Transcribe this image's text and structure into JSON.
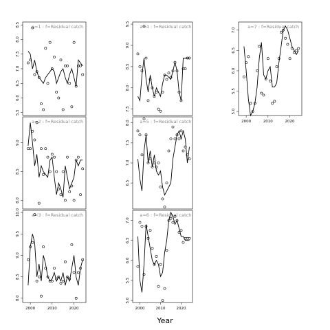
{
  "figure": {
    "xlabel": "Year"
  },
  "chart_data": [
    {
      "type": "line",
      "title": "a=1 : f=Residual catch",
      "ylim": [
        5.4,
        8.6
      ],
      "yticks": [
        5.5,
        6.0,
        6.5,
        7.0,
        7.5,
        8.0,
        8.5
      ],
      "xticks": [],
      "series": [
        {
          "style": "line",
          "x": [
            1999,
            2000,
            2001,
            2002,
            2003,
            2004,
            2005,
            2006,
            2007,
            2008,
            2009,
            2010,
            2011,
            2012,
            2013,
            2014,
            2015,
            2016,
            2017,
            2018,
            2019,
            2020,
            2021,
            2022,
            2023,
            2024
          ],
          "y": [
            7.6,
            7.5,
            7.0,
            7.3,
            6.9,
            6.7,
            6.6,
            6.5,
            6.7,
            6.8,
            6.9,
            7.0,
            6.9,
            6.5,
            6.7,
            6.9,
            7.0,
            6.7,
            6.5,
            6.8,
            7.0,
            6.7,
            6.4,
            7.3,
            7.2,
            7.1
          ]
        },
        {
          "style": "points",
          "x": [
            1999,
            2000,
            2001,
            2002,
            2003,
            2004,
            2005,
            2006,
            2007,
            2008,
            2009,
            2010,
            2011,
            2012,
            2013,
            2014,
            2015,
            2016,
            2017,
            2018,
            2019,
            2020,
            2021,
            2022,
            2023,
            2024
          ],
          "y": [
            7.2,
            7.3,
            8.4,
            6.8,
            6.9,
            6.7,
            5.8,
            5.6,
            7.7,
            6.5,
            7.9,
            7.0,
            7.4,
            6.2,
            6.0,
            7.3,
            5.6,
            7.1,
            7.1,
            6.5,
            5.7,
            7.9,
            6.4,
            7.1,
            7.1,
            6.8
          ]
        }
      ]
    },
    {
      "type": "line",
      "title": "a=2 : f=Residual catch",
      "ylim": [
        7.85,
        9.45
      ],
      "yticks": [
        8.0,
        8.5,
        9.0
      ],
      "xticks": [],
      "series": [
        {
          "style": "line",
          "x": [
            1999,
            2000,
            2001,
            2002,
            2003,
            2004,
            2005,
            2006,
            2007,
            2008,
            2009,
            2010,
            2011,
            2012,
            2013,
            2014,
            2015,
            2016,
            2017,
            2018,
            2019,
            2020,
            2021,
            2022,
            2023,
            2024
          ],
          "y": [
            8.95,
            9.35,
            9.0,
            8.6,
            8.8,
            8.4,
            8.6,
            8.5,
            8.45,
            8.4,
            8.7,
            8.75,
            8.4,
            8.1,
            8.3,
            8.2,
            8.05,
            8.6,
            8.4,
            8.2,
            8.3,
            8.4,
            8.7,
            8.6,
            8.7,
            8.7
          ]
        },
        {
          "style": "points",
          "x": [
            1999,
            2000,
            2001,
            2002,
            2003,
            2004,
            2005,
            2006,
            2007,
            2008,
            2009,
            2010,
            2011,
            2012,
            2013,
            2014,
            2015,
            2016,
            2017,
            2018,
            2019,
            2020,
            2021,
            2022,
            2023,
            2024
          ],
          "y": [
            8.9,
            8.9,
            9.2,
            9.05,
            9.35,
            7.95,
            8.9,
            8.45,
            8.9,
            8.75,
            8.5,
            8.8,
            8.75,
            8.5,
            8.2,
            8.1,
            8.5,
            8.0,
            8.75,
            8.15,
            8.25,
            8.0,
            8.7,
            8.75,
            8.1,
            8.55
          ]
        }
      ]
    },
    {
      "type": "line",
      "title": "a=3 : f=Residual catch",
      "ylim": [
        7.9,
        10.05
      ],
      "yticks": [
        8.0,
        8.5,
        9.0,
        9.5,
        10.0
      ],
      "xticks": [
        2000,
        2010,
        2020
      ],
      "series": [
        {
          "style": "line",
          "x": [
            1999,
            2000,
            2001,
            2002,
            2003,
            2004,
            2005,
            2006,
            2007,
            2008,
            2009,
            2010,
            2011,
            2012,
            2013,
            2014,
            2015,
            2016,
            2017,
            2018,
            2019,
            2020,
            2021,
            2022,
            2023,
            2024
          ],
          "y": [
            8.3,
            9.2,
            9.5,
            9.3,
            8.5,
            8.8,
            8.4,
            9.0,
            8.8,
            8.5,
            8.4,
            8.45,
            8.6,
            8.4,
            8.5,
            8.4,
            8.6,
            8.3,
            8.5,
            8.4,
            8.7,
            9.0,
            8.5,
            8.3,
            8.7,
            8.9
          ]
        },
        {
          "style": "points",
          "x": [
            1999,
            2000,
            2001,
            2002,
            2003,
            2004,
            2005,
            2006,
            2007,
            2008,
            2009,
            2010,
            2011,
            2012,
            2013,
            2014,
            2015,
            2016,
            2017,
            2018,
            2019,
            2020,
            2021,
            2022,
            2023,
            2024
          ],
          "y": [
            8.9,
            9.2,
            9.3,
            9.95,
            8.4,
            8.5,
            8.05,
            9.2,
            8.7,
            8.5,
            8.4,
            8.4,
            8.7,
            8.45,
            8.5,
            8.35,
            8.4,
            8.85,
            8.5,
            8.45,
            9.25,
            8.6,
            8.0,
            8.6,
            8.7,
            8.9
          ]
        }
      ]
    },
    {
      "type": "line",
      "title": "a=4 : f=Residual catch",
      "ylim": [
        7.35,
        9.55
      ],
      "yticks": [
        7.5,
        8.0,
        8.5,
        9.0,
        9.5
      ],
      "xticks": [],
      "series": [
        {
          "style": "line",
          "x": [
            1999,
            2000,
            2001,
            2002,
            2003,
            2004,
            2005,
            2006,
            2007,
            2008,
            2009,
            2010,
            2011,
            2012,
            2013,
            2014,
            2015,
            2016,
            2017,
            2018,
            2019,
            2020,
            2021,
            2022,
            2023,
            2024
          ],
          "y": [
            7.8,
            7.7,
            8.3,
            8.7,
            8.2,
            7.9,
            8.3,
            8.0,
            7.8,
            8.0,
            7.9,
            7.8,
            8.1,
            8.3,
            8.3,
            8.25,
            8.2,
            8.4,
            8.6,
            8.4,
            7.9,
            7.7,
            8.7,
            8.7,
            8.7,
            8.7
          ]
        },
        {
          "style": "points",
          "x": [
            1999,
            2000,
            2001,
            2002,
            2003,
            2004,
            2005,
            2006,
            2007,
            2008,
            2009,
            2010,
            2011,
            2012,
            2013,
            2014,
            2015,
            2016,
            2017,
            2018,
            2019,
            2020,
            2021,
            2022,
            2023,
            2024
          ],
          "y": [
            8.8,
            8.5,
            8.4,
            9.45,
            8.7,
            7.7,
            8.2,
            8.0,
            7.8,
            7.9,
            7.5,
            7.45,
            7.9,
            8.3,
            8.2,
            8.35,
            8.25,
            8.4,
            8.6,
            8.4,
            7.9,
            7.7,
            8.45,
            8.45,
            8.7,
            8.7
          ]
        }
      ]
    },
    {
      "type": "line",
      "title": "a=5 : f=Residual catch",
      "ylim": [
        5.85,
        8.15
      ],
      "yticks": [
        6.5,
        7.0,
        7.5,
        8.0
      ],
      "xticks": [],
      "series": [
        {
          "style": "line",
          "x": [
            1999,
            2000,
            2001,
            2002,
            2003,
            2004,
            2005,
            2006,
            2007,
            2008,
            2009,
            2010,
            2011,
            2012,
            2013,
            2014,
            2015,
            2016,
            2017,
            2018,
            2019,
            2020,
            2021,
            2022,
            2023,
            2024
          ],
          "y": [
            7.1,
            6.6,
            6.3,
            7.3,
            7.7,
            7.0,
            7.3,
            6.9,
            7.2,
            6.8,
            6.7,
            6.8,
            6.4,
            6.2,
            6.3,
            6.4,
            6.5,
            7.1,
            7.4,
            7.7,
            7.8,
            7.6,
            7.8,
            7.6,
            7.0,
            7.4
          ]
        },
        {
          "style": "points",
          "x": [
            1999,
            2000,
            2001,
            2002,
            2003,
            2004,
            2005,
            2006,
            2007,
            2008,
            2009,
            2010,
            2011,
            2012,
            2013,
            2014,
            2015,
            2016,
            2017,
            2018,
            2019,
            2020,
            2021,
            2022,
            2023,
            2024
          ],
          "y": [
            7.8,
            7.7,
            7.2,
            8.1,
            7.7,
            7.0,
            7.1,
            6.9,
            7.0,
            6.9,
            7.0,
            6.4,
            6.1,
            5.9,
            6.5,
            7.3,
            7.6,
            7.9,
            7.6,
            7.7,
            7.6,
            7.8,
            7.3,
            7.4,
            7.2,
            7.1
          ]
        }
      ]
    },
    {
      "type": "line",
      "title": "a=6 : f=Residual catch",
      "ylim": [
        4.95,
        7.25
      ],
      "yticks": [
        5.0,
        5.5,
        6.0,
        6.5,
        7.0
      ],
      "xticks": [
        2000,
        2010,
        2020
      ],
      "series": [
        {
          "style": "line",
          "x": [
            1999,
            2000,
            2001,
            2002,
            2003,
            2004,
            2005,
            2006,
            2007,
            2008,
            2009,
            2010,
            2011,
            2012,
            2013,
            2014,
            2015,
            2016,
            2017,
            2018,
            2019,
            2020,
            2021,
            2022,
            2023,
            2024
          ],
          "y": [
            6.6,
            5.5,
            5.2,
            5.9,
            6.9,
            6.6,
            6.3,
            6.0,
            5.9,
            6.0,
            5.9,
            5.6,
            5.7,
            6.2,
            6.5,
            7.0,
            7.2,
            7.1,
            6.9,
            7.0,
            6.8,
            6.6,
            6.6,
            6.5,
            6.5,
            6.5
          ]
        },
        {
          "style": "points",
          "x": [
            1999,
            2000,
            2001,
            2002,
            2003,
            2004,
            2005,
            2006,
            2007,
            2008,
            2009,
            2010,
            2011,
            2012,
            2013,
            2014,
            2015,
            2016,
            2017,
            2018,
            2019,
            2020,
            2021,
            2022,
            2023,
            2024
          ],
          "y": [
            5.85,
            6.95,
            6.85,
            5.65,
            6.85,
            6.55,
            6.75,
            6.3,
            5.9,
            6.1,
            5.35,
            5.9,
            5.0,
            5.3,
            6.25,
            7.0,
            7.05,
            6.95,
            7.1,
            7.0,
            6.7,
            6.75,
            6.45,
            6.55,
            6.55,
            6.55
          ]
        }
      ]
    },
    {
      "type": "line",
      "title": "a=7 : f=Residual catch",
      "ylim": [
        4.9,
        7.2
      ],
      "yticks": [
        5.0,
        5.5,
        6.0,
        6.5,
        7.0
      ],
      "xticks": [
        2000,
        2010,
        2020
      ],
      "series": [
        {
          "style": "line",
          "x": [
            1999,
            2000,
            2001,
            2002,
            2003,
            2004,
            2005,
            2006,
            2007,
            2008,
            2009,
            2010,
            2011,
            2012,
            2013,
            2014,
            2015,
            2016,
            2017,
            2018,
            2019,
            2020,
            2021,
            2022,
            2023,
            2024
          ],
          "y": [
            6.6,
            6.0,
            5.3,
            4.9,
            5.0,
            5.2,
            5.6,
            6.3,
            6.7,
            5.9,
            5.8,
            6.0,
            6.1,
            5.6,
            5.6,
            5.7,
            6.2,
            6.6,
            7.0,
            7.1,
            7.0,
            6.8,
            6.6,
            6.5,
            6.4,
            6.5
          ]
        },
        {
          "style": "points",
          "x": [
            1999,
            2000,
            2001,
            2002,
            2003,
            2004,
            2005,
            2006,
            2007,
            2008,
            2009,
            2010,
            2011,
            2012,
            2013,
            2014,
            2015,
            2016,
            2017,
            2018,
            2019,
            2020,
            2021,
            2022,
            2023,
            2024
          ],
          "y": [
            5.85,
            6.2,
            6.35,
            5.2,
            5.0,
            5.2,
            6.0,
            6.6,
            5.45,
            5.4,
            5.8,
            6.3,
            5.75,
            5.2,
            5.25,
            6.1,
            6.3,
            6.95,
            7.0,
            6.8,
            6.65,
            6.3,
            6.55,
            6.45,
            6.5,
            6.55
          ]
        }
      ]
    }
  ]
}
